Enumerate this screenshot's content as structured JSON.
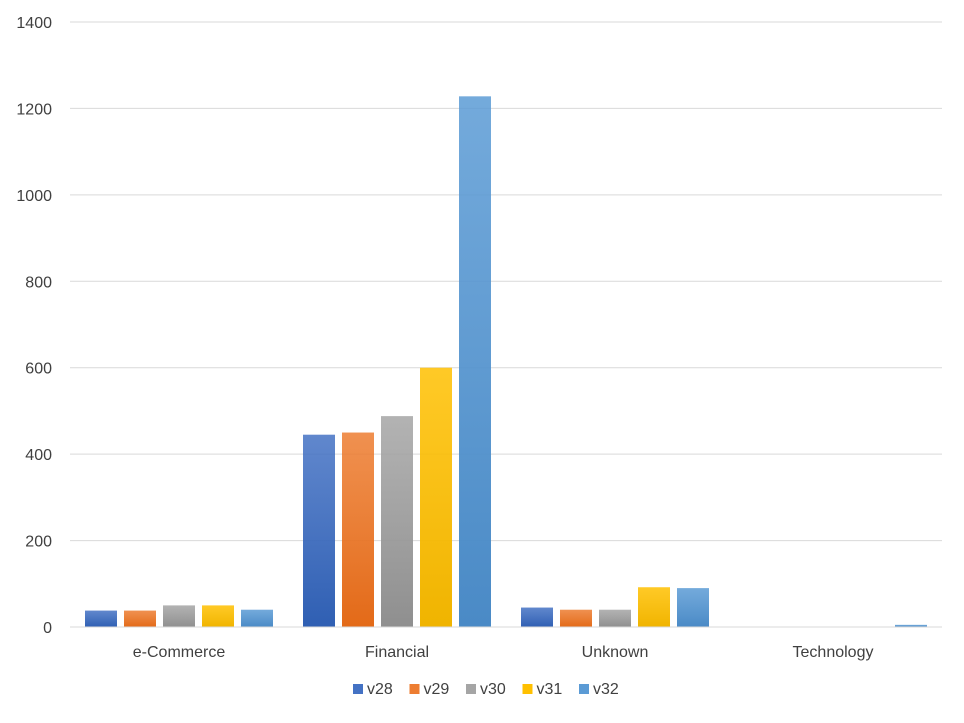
{
  "chart_data": {
    "type": "bar",
    "categories": [
      "e-Commerce",
      "Financial",
      "Unknown",
      "Technology"
    ],
    "series": [
      {
        "name": "v28",
        "color": "#4472c4",
        "color_dark": "#2f5fb3",
        "values": [
          38,
          445,
          45,
          0
        ]
      },
      {
        "name": "v29",
        "color": "#ed7d31",
        "color_dark": "#e36a18",
        "values": [
          38,
          450,
          40,
          0
        ]
      },
      {
        "name": "v30",
        "color": "#a5a5a5",
        "color_dark": "#8f8f8f",
        "values": [
          50,
          488,
          40,
          0
        ]
      },
      {
        "name": "v31",
        "color": "#ffc000",
        "color_dark": "#f0b400",
        "values": [
          50,
          600,
          92,
          0
        ]
      },
      {
        "name": "v32",
        "color": "#5b9bd5",
        "color_dark": "#4a8ac6",
        "values": [
          40,
          1228,
          90,
          5
        ]
      }
    ],
    "ylim": [
      0,
      1400
    ],
    "yticks": [
      "0",
      "200",
      "400",
      "600",
      "800",
      "1000",
      "1200",
      "1400"
    ],
    "grid": true,
    "legend_position": "bottom"
  }
}
